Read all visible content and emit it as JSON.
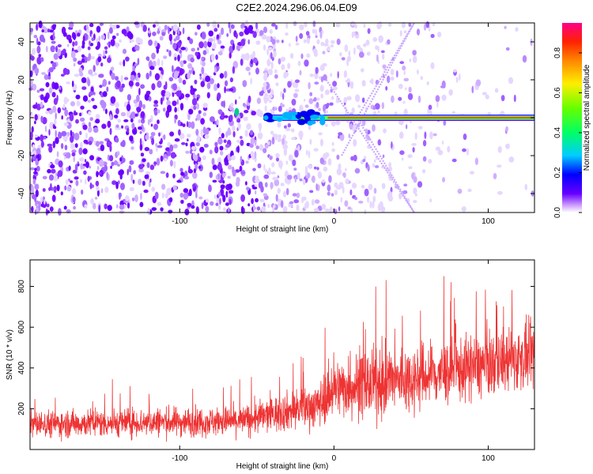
{
  "title": "C2E2.2024.296.06.04.E09",
  "chart_data": [
    {
      "type": "heatmap",
      "title": "C2E2.2024.296.06.04.E09",
      "xlabel": "Height of straight line (km)",
      "ylabel": "Frequency (Hz)",
      "xlim": [
        -197,
        130
      ],
      "ylim": [
        -50,
        50
      ],
      "xticks": [
        -100,
        0,
        100
      ],
      "yticks": [
        -40,
        -20,
        0,
        20,
        40
      ],
      "colorbar": {
        "label": "Normalized spectral amplitude",
        "range": [
          0,
          0.95
        ],
        "ticks": [
          0.0,
          0.2,
          0.4,
          0.6,
          0.8
        ]
      },
      "features": {
        "carrier_band": {
          "frequency": 0,
          "x_start": -45,
          "x_end": 130,
          "amplitude": 0.95
        },
        "v_lines": [
          {
            "x_start": 5,
            "y_start": -20,
            "x_end": 52,
            "y_end": 50
          },
          {
            "x_start": -5,
            "y_start": 20,
            "x_end": 52,
            "y_end": -50
          },
          {
            "x_start": 15,
            "y_start": 0,
            "x_end": 52,
            "y_end": 50
          },
          {
            "x_start": 15,
            "y_start": 0,
            "x_end": 52,
            "y_end": -50
          }
        ]
      }
    },
    {
      "type": "line",
      "xlabel": "Height of straight line (km)",
      "ylabel": "SNR (10 * v/v)",
      "xlim": [
        -197,
        130
      ],
      "ylim": [
        0,
        930
      ],
      "xticks": [
        -100,
        0,
        100
      ],
      "yticks": [
        200,
        400,
        600,
        800
      ],
      "color": "#ee3333",
      "trend": [
        {
          "x": -197,
          "mean": 125,
          "spread": 90
        },
        {
          "x": -60,
          "mean": 140,
          "spread": 100
        },
        {
          "x": -10,
          "mean": 220,
          "spread": 150
        },
        {
          "x": 0,
          "mean": 300,
          "spread": 190
        },
        {
          "x": 25,
          "mean": 320,
          "spread": 230
        },
        {
          "x": 60,
          "mean": 360,
          "spread": 220
        },
        {
          "x": 130,
          "mean": 460,
          "spread": 210
        }
      ]
    }
  ]
}
